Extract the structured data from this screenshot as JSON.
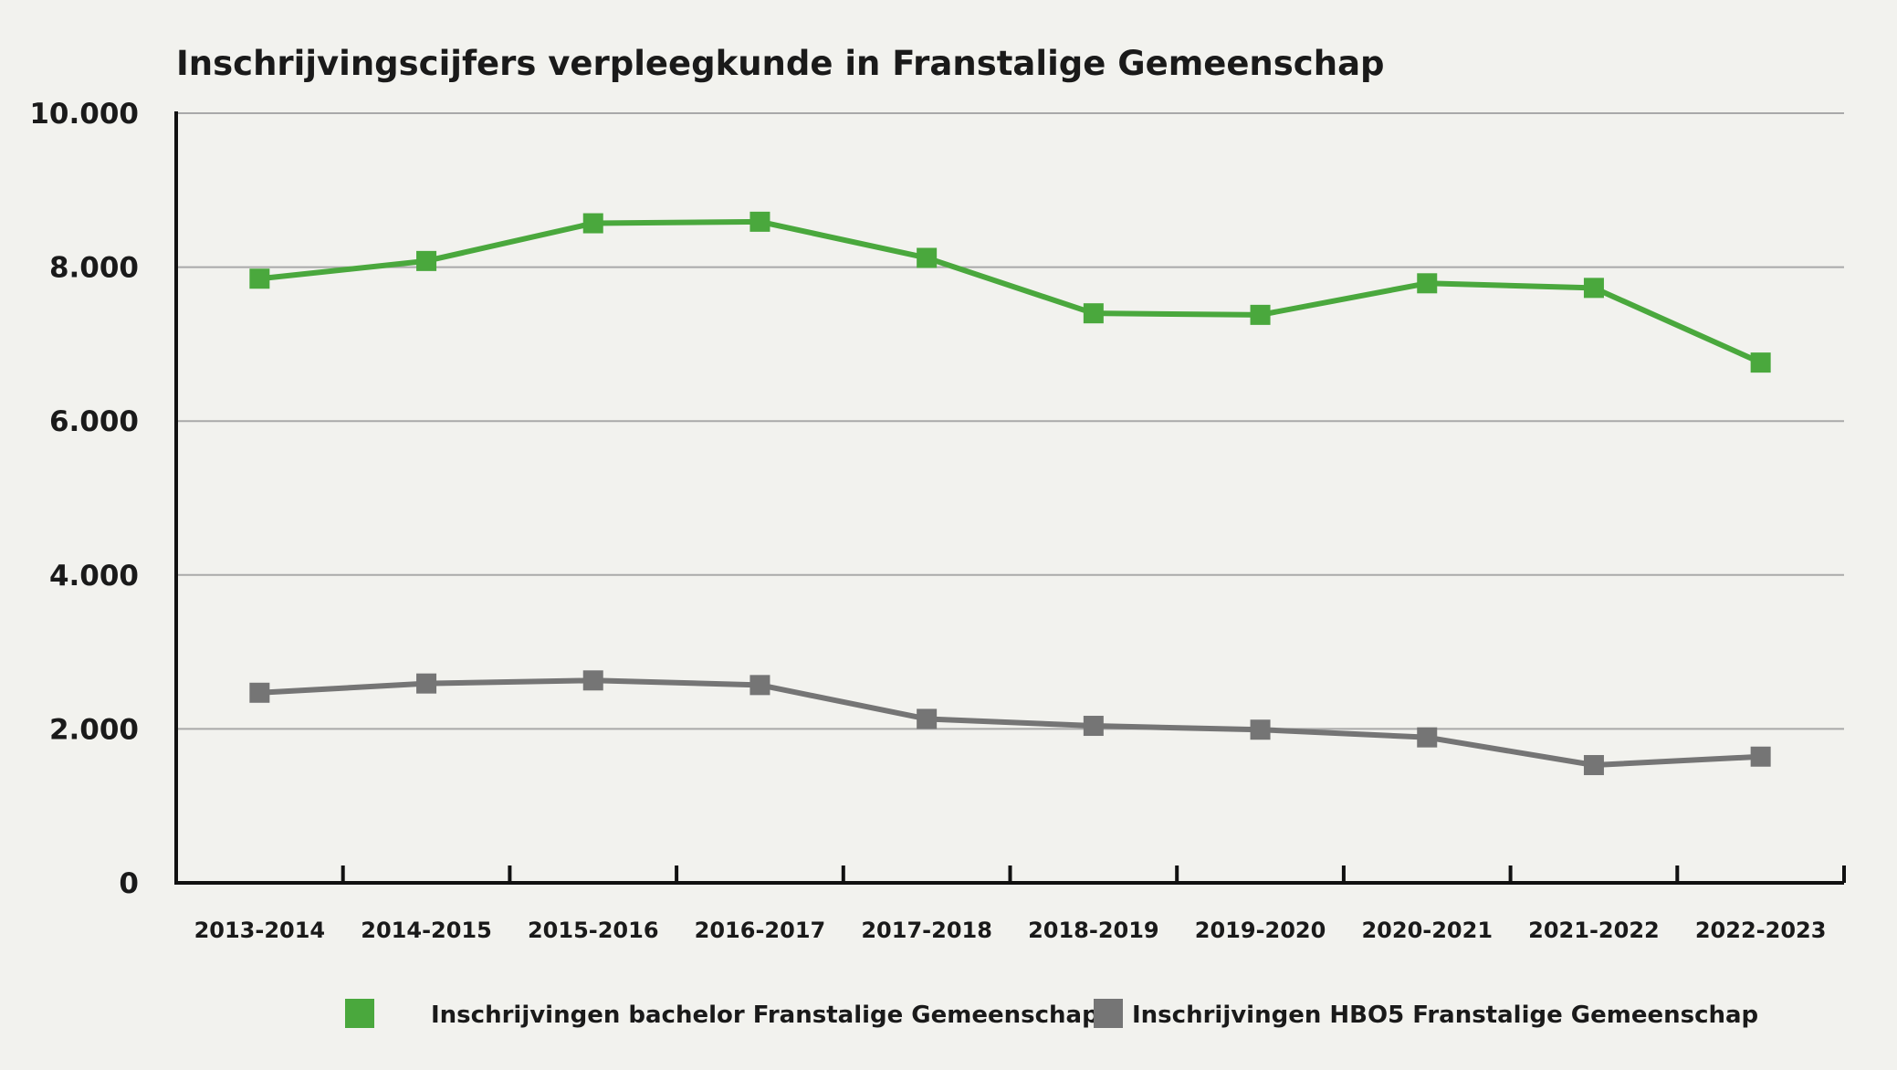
{
  "chart_data": {
    "type": "line",
    "title": "Inschrijvingscijfers verpleegkunde in Franstalige Gemeenschap",
    "xlabel": "",
    "ylabel": "",
    "categories": [
      "2013-2014",
      "2014-2015",
      "2015-2016",
      "2016-2017",
      "2017-2018",
      "2018-2019",
      "2019-2020",
      "2020-2021",
      "2021-2022",
      "2022-2023"
    ],
    "ylim": [
      0,
      10000
    ],
    "yticks": [
      0,
      2000,
      4000,
      6000,
      8000,
      10000
    ],
    "ytick_labels": [
      "0",
      "2.000",
      "4.000",
      "6.000",
      "8.000",
      "10.000"
    ],
    "grid": true,
    "legend_position": "bottom",
    "series": [
      {
        "name": "Inschrijvingen bachelor Franstalige Gemeenschap",
        "color": "#4aa83d",
        "values": [
          7850,
          8080,
          8570,
          8590,
          8120,
          7400,
          7380,
          7790,
          7730,
          6760
        ]
      },
      {
        "name": "Inschrijvingen HBO5 Franstalige Gemeenschap",
        "color": "#757575",
        "values": [
          2470,
          2590,
          2630,
          2570,
          2130,
          2040,
          1990,
          1890,
          1530,
          1640
        ]
      }
    ]
  }
}
